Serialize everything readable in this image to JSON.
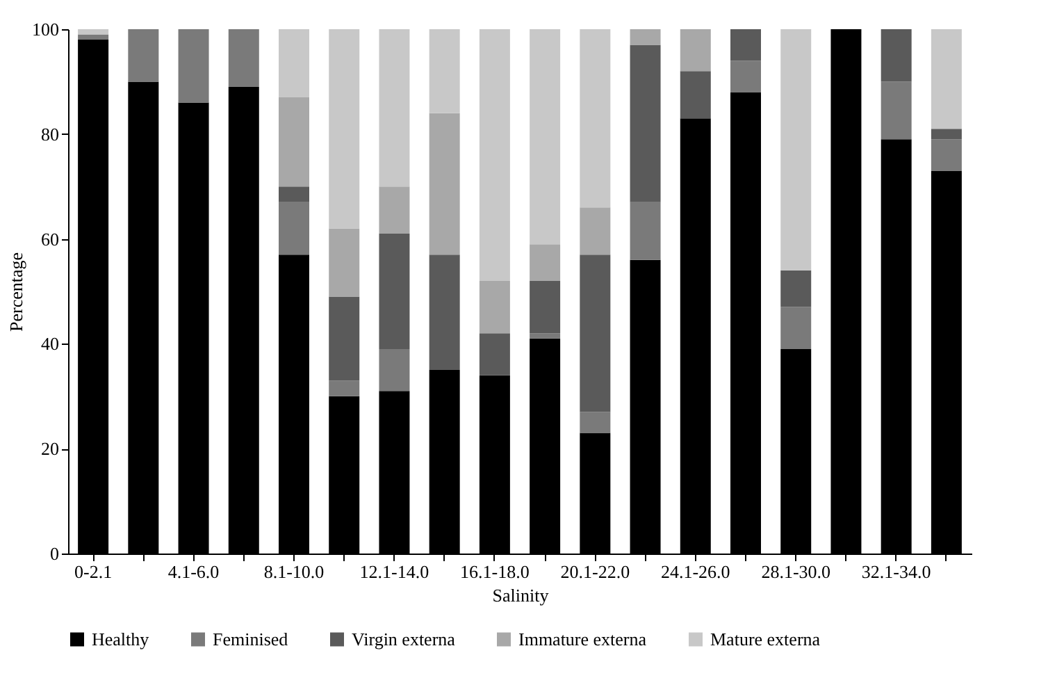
{
  "chart_data": {
    "type": "bar",
    "stacked": true,
    "xlabel": "Salinity",
    "ylabel": "Percentage",
    "categories": [
      "0-2.1",
      null,
      "4.1-6.0",
      null,
      "8.1-10.0",
      null,
      "12.1-14.0",
      null,
      "16.1-18.0",
      null,
      "20.1-22.0",
      null,
      "24.1-26.0",
      null,
      "28.1-30.0",
      null,
      "32.1-34.0",
      null
    ],
    "series": [
      {
        "name": "Healthy",
        "color": "#000000",
        "values": [
          98,
          90,
          86,
          89,
          57,
          30,
          31,
          35,
          34,
          41,
          23,
          56,
          83,
          88,
          39,
          100,
          79,
          73
        ]
      },
      {
        "name": "Feminised",
        "color": "#7a7a7a",
        "values": [
          1,
          10,
          14,
          11,
          10,
          3,
          8,
          0,
          0,
          1,
          4,
          11,
          0,
          6,
          8,
          0,
          11,
          6
        ]
      },
      {
        "name": "Virgin externa",
        "color": "#5a5a5a",
        "values": [
          0,
          0,
          0,
          0,
          3,
          16,
          22,
          22,
          8,
          10,
          30,
          30,
          9,
          6,
          7,
          0,
          10,
          2
        ]
      },
      {
        "name": "Immature externa",
        "color": "#a8a8a8",
        "values": [
          0,
          0,
          0,
          0,
          17,
          13,
          9,
          27,
          10,
          7,
          9,
          3,
          8,
          0,
          0,
          0,
          0,
          0
        ]
      },
      {
        "name": "Mature externa",
        "color": "#c8c8c8",
        "values": [
          1,
          0,
          0,
          0,
          13,
          38,
          30,
          16,
          48,
          41,
          34,
          0,
          0,
          0,
          46,
          0,
          0,
          19
        ]
      }
    ],
    "ylim": [
      0,
      100
    ],
    "yticks": [
      0,
      20,
      40,
      60,
      80,
      100
    ],
    "grid": false,
    "legend": "bottom"
  }
}
